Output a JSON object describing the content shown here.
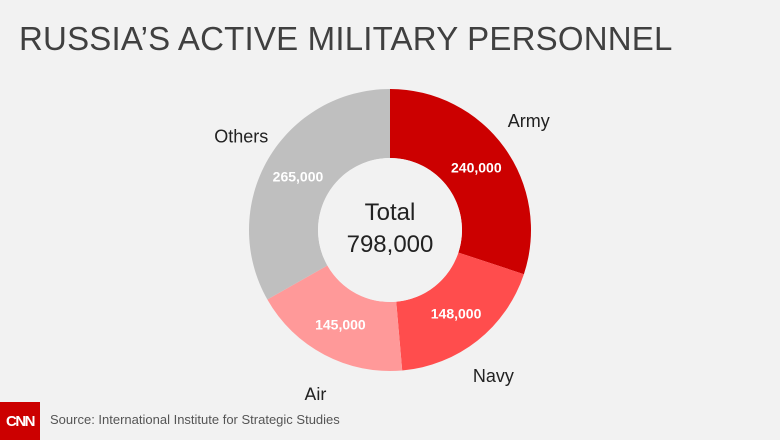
{
  "title": "RUSSIA’S ACTIVE MILITARY PERSONNEL",
  "footer": {
    "logo": "CNN",
    "source": "Source: International Institute for Strategic Studies"
  },
  "chart_data": {
    "type": "pie",
    "variant": "donut",
    "center_label": {
      "line1": "Total",
      "line2": "798,000"
    },
    "total": 798000,
    "slices": [
      {
        "label": "Army",
        "value": 240000,
        "value_label": "240,000",
        "color": "#cc0000"
      },
      {
        "label": "Navy",
        "value": 148000,
        "value_label": "148,000",
        "color": "#ff4d4d"
      },
      {
        "label": "Air",
        "value": 145000,
        "value_label": "145,000",
        "color": "#ff9999"
      },
      {
        "label": "Others",
        "value": 265000,
        "value_label": "265,000",
        "color": "#bfbfbf"
      }
    ]
  }
}
